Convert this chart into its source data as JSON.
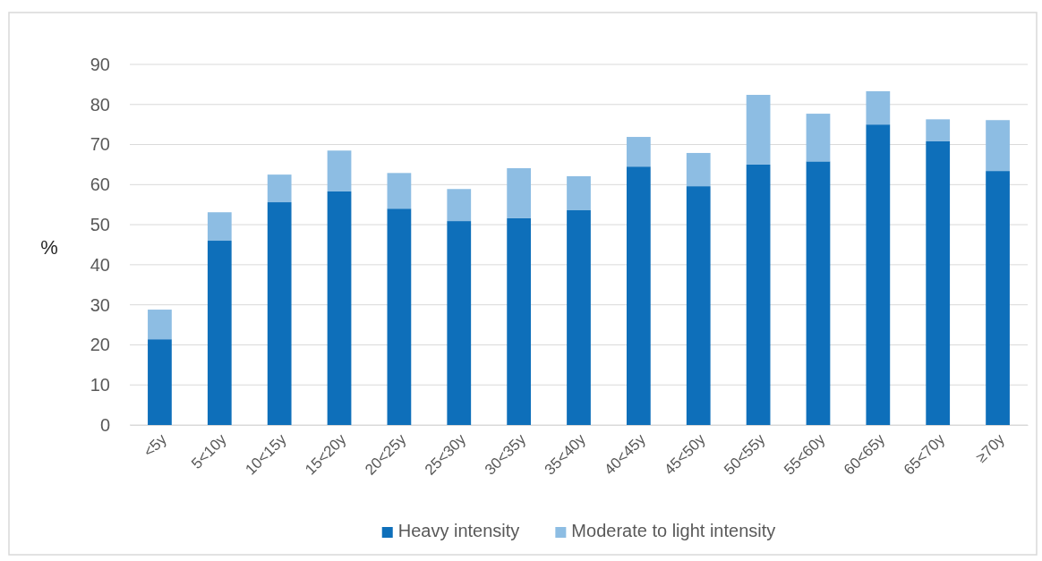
{
  "chart_data": {
    "type": "bar",
    "stacked": true,
    "ylabel": "%",
    "categories": [
      "<5y",
      "5<10y",
      "10<15y",
      "15<20y",
      "20<25y",
      "25<30y",
      "30<35y",
      "35<40y",
      "40<45y",
      "45<50y",
      "50<55y",
      "55<60y",
      "60<65y",
      "65<70y",
      "≥70y"
    ],
    "series": [
      {
        "name": "Heavy intensity",
        "color": "#0e6fba",
        "values": [
          21.4,
          46.0,
          55.6,
          58.3,
          54.0,
          50.9,
          51.6,
          53.6,
          64.5,
          59.6,
          65.0,
          65.8,
          75.0,
          70.8,
          63.4
        ]
      },
      {
        "name": "Moderate to light intensity",
        "color": "#8dbde3",
        "values": [
          7.4,
          7.1,
          6.9,
          10.2,
          8.9,
          8.0,
          12.5,
          8.5,
          7.4,
          8.3,
          17.4,
          11.9,
          8.3,
          5.5,
          12.7
        ]
      }
    ],
    "ylim": [
      0,
      90
    ],
    "yticks": [
      0,
      10,
      20,
      30,
      40,
      50,
      60,
      70,
      80,
      90
    ],
    "grid": "y",
    "legend": "bottom"
  }
}
